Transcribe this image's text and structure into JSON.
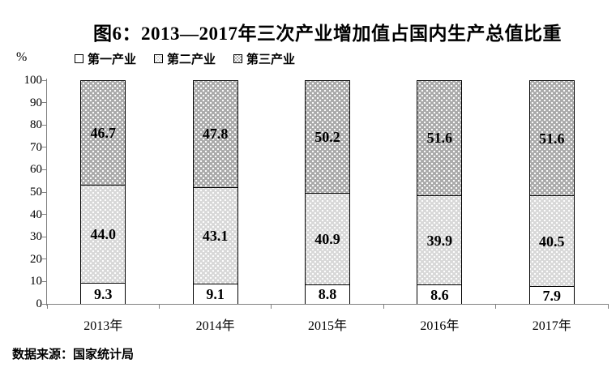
{
  "figure": {
    "title": "图6：2013—2017年三次产业增加值占国内生产总值比重",
    "y_unit_label": "%",
    "source_note": "数据来源：国家统计局"
  },
  "chart_data": {
    "type": "bar",
    "stacked": true,
    "title": "图6：2013—2017年三次产业增加值占国内生产总值比重",
    "xlabel": "",
    "ylabel": "%",
    "ylim": [
      0,
      100
    ],
    "yticks": [
      0,
      10,
      20,
      30,
      40,
      50,
      60,
      70,
      80,
      90,
      100
    ],
    "grid": false,
    "legend_position": "top-left",
    "categories": [
      "2013年",
      "2014年",
      "2015年",
      "2016年",
      "2017年"
    ],
    "series": [
      {
        "name": "第一产业",
        "values": [
          9.3,
          9.1,
          8.8,
          8.6,
          7.9
        ],
        "labels": [
          "9.3",
          "9.1",
          "8.8",
          "8.6",
          "7.9"
        ],
        "fill": "#ffffff",
        "pattern": "none"
      },
      {
        "name": "第二产业",
        "values": [
          44.0,
          43.1,
          40.9,
          39.9,
          40.5
        ],
        "labels": [
          "44.0",
          "43.1",
          "40.9",
          "39.9",
          "40.5"
        ],
        "fill": "#d8d8d8",
        "pattern": "dots"
      },
      {
        "name": "第三产业",
        "values": [
          46.7,
          47.8,
          50.2,
          51.6,
          51.6
        ],
        "labels": [
          "46.7",
          "47.8",
          "50.2",
          "51.6",
          "51.6"
        ],
        "fill": "#a9a9a9",
        "pattern": "dots"
      }
    ],
    "colors": {
      "axis": "#808080",
      "bar_border": "#000000",
      "text": "#000000"
    }
  }
}
